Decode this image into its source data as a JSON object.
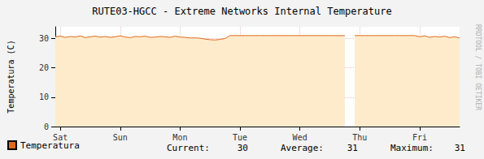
{
  "chart_data": {
    "type": "area",
    "title": "RUTE03-HGCC - Extreme Networks Internal Temperature",
    "y_label": "Temperatura (C)",
    "watermark": "RRDTOOL / TOBI OETIKER",
    "categories": [
      null,
      "Sat",
      null,
      null,
      null,
      null,
      null,
      null,
      null,
      null,
      null,
      null,
      null,
      "Sun",
      null,
      null,
      null,
      null,
      null,
      null,
      null,
      null,
      null,
      null,
      null,
      "Mon",
      null,
      null,
      null,
      null,
      null,
      null,
      null,
      null,
      null,
      null,
      null,
      "Tue",
      null,
      null,
      null,
      null,
      null,
      null,
      null,
      null,
      null,
      null,
      null,
      "Wed",
      null,
      null,
      null,
      null,
      null,
      null,
      null,
      null,
      null,
      null,
      null,
      "Thu",
      null,
      null,
      null,
      null,
      null,
      null,
      null,
      null,
      null,
      null,
      null,
      "Fri",
      null,
      null,
      null,
      null,
      null,
      null,
      null,
      null
    ],
    "series": [
      {
        "name": "Temperatura",
        "color": "#e06a1b",
        "values": [
          30.6,
          30.8,
          30.4,
          30.7,
          30.5,
          30.9,
          30.3,
          30.6,
          30.8,
          30.5,
          30.7,
          30.4,
          30.6,
          30.9,
          30.5,
          30.3,
          30.7,
          30.6,
          30.8,
          30.4,
          30.5,
          30.7,
          30.6,
          30.4,
          30.8,
          30.5,
          30.4,
          30.2,
          30.2,
          30.1,
          29.8,
          29.6,
          29.5,
          29.7,
          30.0,
          31,
          31,
          31,
          31,
          31,
          31,
          31,
          31,
          31,
          31,
          31,
          31,
          31,
          31,
          31,
          31,
          31,
          31,
          31,
          31,
          31,
          31,
          31,
          31,
          null,
          31,
          31,
          31,
          31,
          31,
          31,
          31,
          31,
          31,
          31,
          31,
          31,
          31,
          30.6,
          30.9,
          30.4,
          30.7,
          30.5,
          30.8,
          30.3,
          30.6,
          30.2
        ]
      }
    ],
    "ylim": [
      0,
      34
    ],
    "yticks": [
      0,
      10,
      20,
      30
    ],
    "grid": true,
    "legend": "bottom-left",
    "stats": [
      {
        "label": "Current:",
        "value": 30
      },
      {
        "label": "Average:",
        "value": 31
      },
      {
        "label": "Maximum:",
        "value": 31
      }
    ]
  }
}
